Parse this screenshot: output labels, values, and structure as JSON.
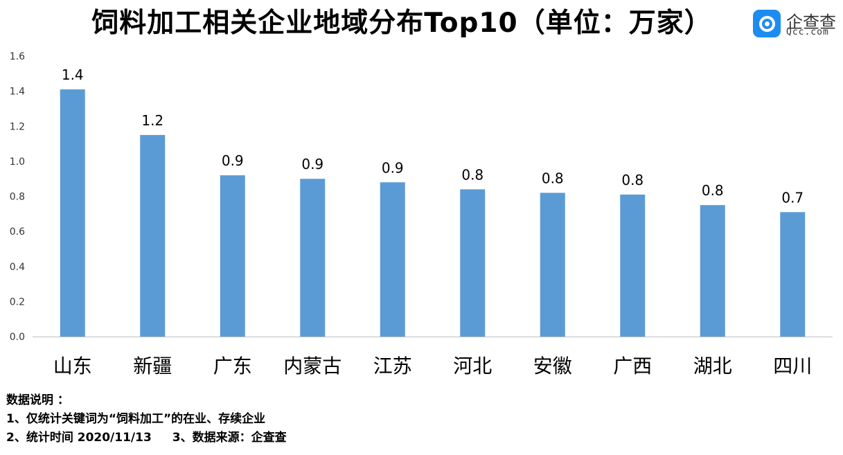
{
  "title": "饲料加工相关企业地域分布Top10（单位：万家）",
  "logo": {
    "name": "企查查",
    "domain": "Qcc.com",
    "color": "#1d8cf0"
  },
  "chart_data": {
    "type": "bar",
    "title": "饲料加工相关企业地域分布Top10（单位：万家）",
    "categories": [
      "山东",
      "新疆",
      "广东",
      "内蒙古",
      "江苏",
      "河北",
      "安徽",
      "广西",
      "湖北",
      "四川"
    ],
    "values": [
      1.41,
      1.15,
      0.92,
      0.9,
      0.88,
      0.84,
      0.82,
      0.81,
      0.75,
      0.71
    ],
    "data_labels": [
      "1.4",
      "1.2",
      "0.9",
      "0.9",
      "0.9",
      "0.8",
      "0.8",
      "0.8",
      "0.8",
      "0.7"
    ],
    "yticks": [
      "0.0",
      "0.2",
      "0.4",
      "0.6",
      "0.8",
      "1.0",
      "1.2",
      "1.4",
      "1.6"
    ],
    "ylim": [
      0,
      1.6
    ],
    "grid": false,
    "bar_color": "#5b9bd5"
  },
  "notes": {
    "heading": "数据说明 ：",
    "line1": "1、仅统计关键词为“饲料加工”的在业、存续企业",
    "line2a": "2、统计时间 2020/11/13",
    "line2b": "3、数据来源：企查查"
  }
}
